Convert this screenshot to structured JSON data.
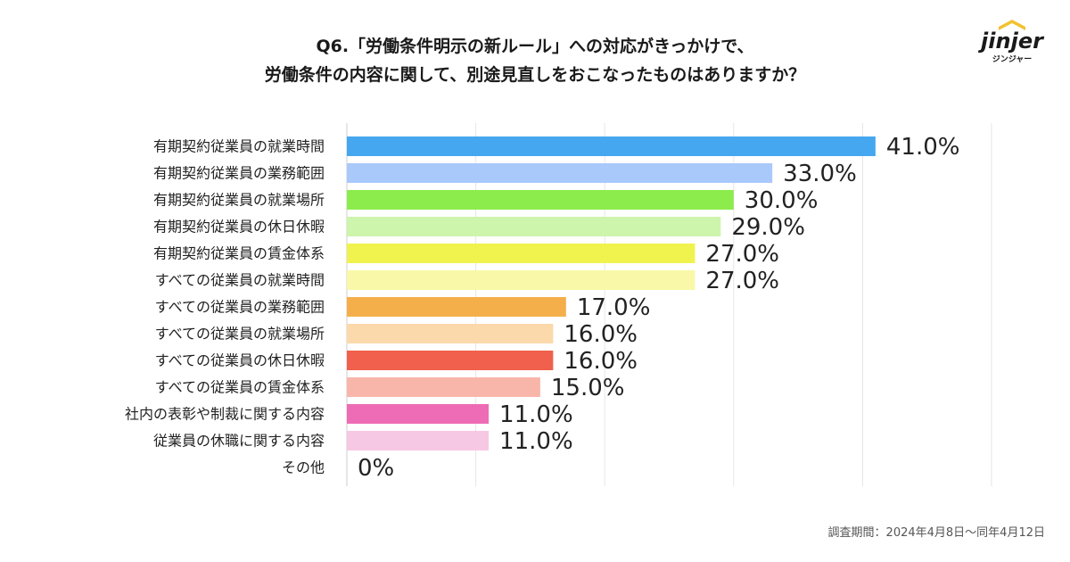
{
  "title": {
    "line1": "Q6.「労働条件明示の新ルール」への対応がきっかけで、",
    "line2": "労働条件の内容に関して、別途見直しをおこなったものはありますか？"
  },
  "logo": {
    "brand": "jinjer",
    "sub": "ジンジャー",
    "color": "#1a1a1a",
    "accent": "#f2c230"
  },
  "footnote": "調査期間：2024年4月8日〜同年4月12日",
  "chart_data": {
    "type": "bar",
    "orientation": "horizontal",
    "title": "Q6.「労働条件明示の新ルール」への対応がきっかけで、労働条件の内容に関して、別途見直しをおこなったものはありますか？",
    "xlabel": "",
    "ylabel": "",
    "xlim": [
      0,
      50
    ],
    "grid": true,
    "categories": [
      "有期契約従業員の就業時間",
      "有期契約従業員の業務範囲",
      "有期契約従業員の就業場所",
      "有期契約従業員の休日休暇",
      "有期契約従業員の賃金体系",
      "すべての従業員の就業時間",
      "すべての従業員の業務範囲",
      "すべての従業員の就業場所",
      "すべての従業員の休日休暇",
      "すべての従業員の賃金体系",
      "社内の表彰や制裁に関する内容",
      "従業員の休職に関する内容",
      "その他"
    ],
    "values": [
      41.0,
      33.0,
      30.0,
      29.0,
      27.0,
      27.0,
      17.0,
      16.0,
      16.0,
      15.0,
      11.0,
      11.0,
      0
    ],
    "value_labels": [
      "41.0%",
      "33.0%",
      "30.0%",
      "29.0%",
      "27.0%",
      "27.0%",
      "17.0%",
      "16.0%",
      "16.0%",
      "15.0%",
      "11.0%",
      "11.0%",
      "0%"
    ],
    "colors": [
      "#45a7f0",
      "#a9c9fb",
      "#8cec4c",
      "#cdf5ab",
      "#f0f24e",
      "#f8f8a8",
      "#f4af4b",
      "#fbd9ab",
      "#f0604c",
      "#f8b6ab",
      "#ee6cb5",
      "#f6c8e3",
      "#cccccc"
    ]
  }
}
